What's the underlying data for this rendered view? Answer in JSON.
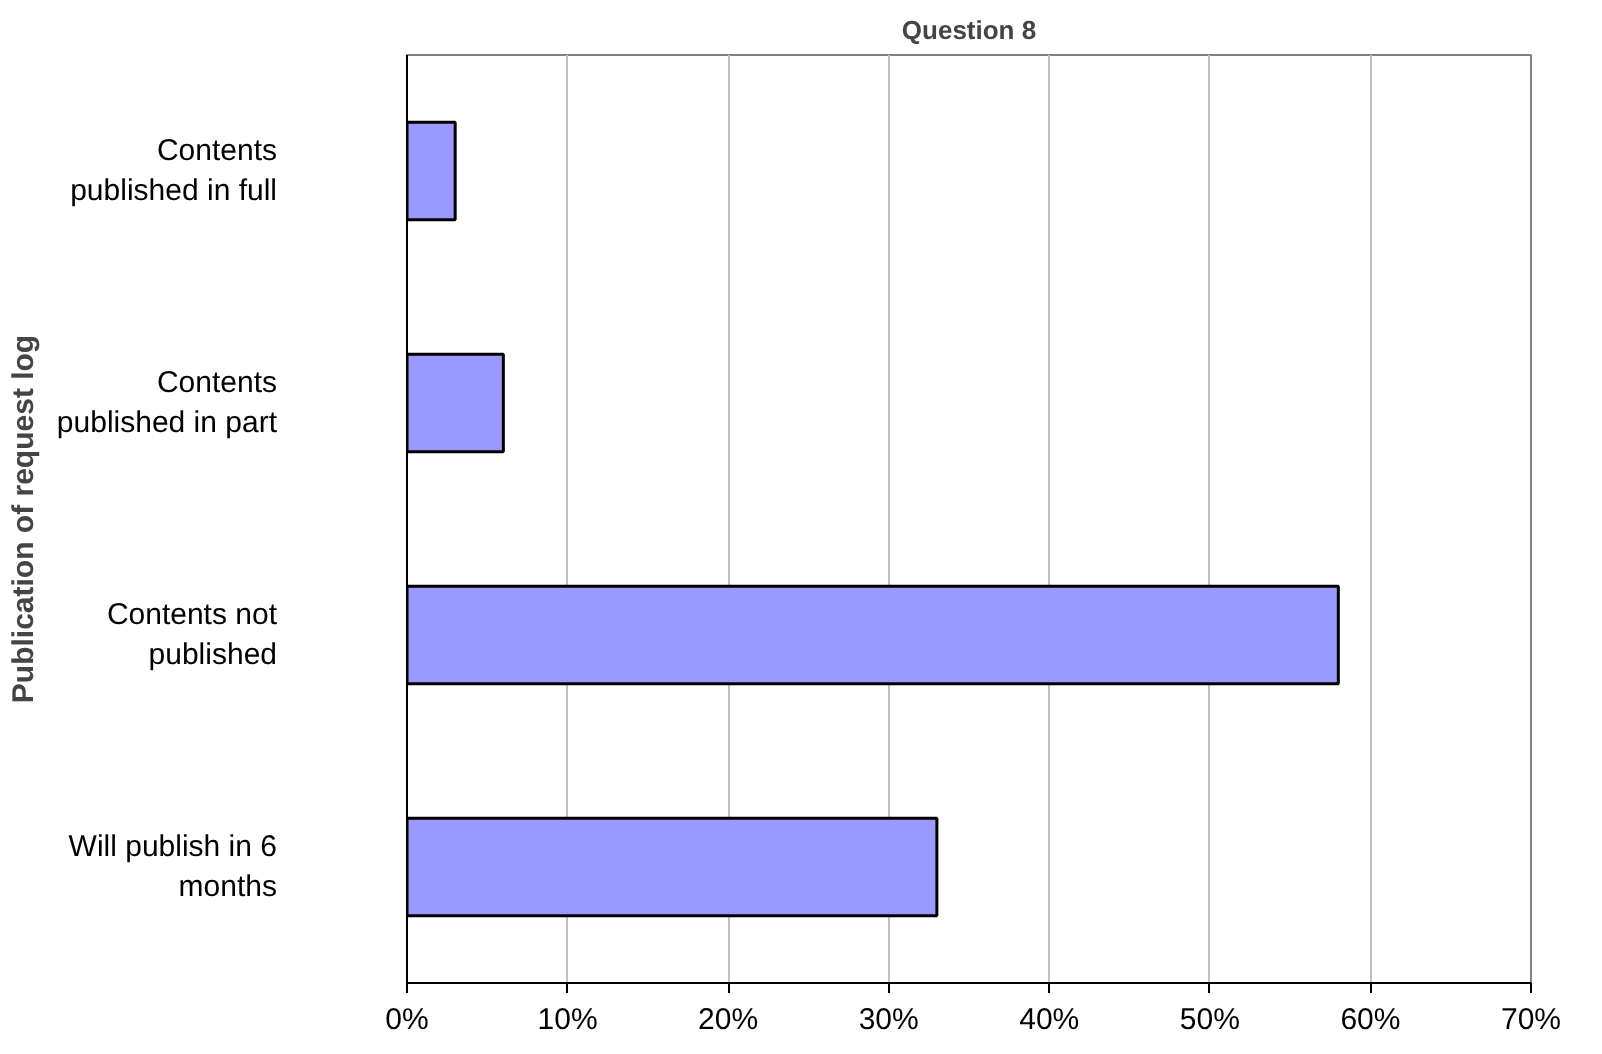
{
  "chart_data": {
    "type": "bar",
    "orientation": "horizontal",
    "title": "Question 8",
    "ylabel": "Publication of request log",
    "categories": [
      "Contents\npublished in full",
      "Contents\npublished in part",
      "Contents not\npublished",
      "Will publish in 6\nmonths"
    ],
    "values": [
      3,
      6,
      58,
      33
    ],
    "color": "#9999ff",
    "xlim": [
      0,
      70
    ],
    "xticks": [
      {
        "value": 0,
        "label": "0%"
      },
      {
        "value": 10,
        "label": "10%"
      },
      {
        "value": 20,
        "label": "20%"
      },
      {
        "value": 30,
        "label": "30%"
      },
      {
        "value": 40,
        "label": "40%"
      },
      {
        "value": 50,
        "label": "50%"
      },
      {
        "value": 60,
        "label": "60%"
      },
      {
        "value": 70,
        "label": "70%"
      }
    ],
    "grid": "x"
  }
}
